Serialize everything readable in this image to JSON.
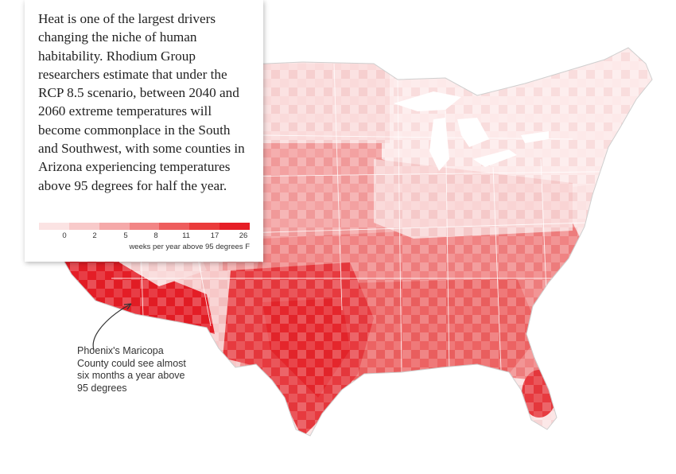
{
  "info": {
    "text": "Heat is one of the largest drivers changing the niche of human habitability. Rhodium Group researchers estimate that under the RCP 8.5 scenario, between 2040 and 2060 extreme temperatures will become commonplace in the South and Southwest, with some counties in Arizona experiencing temperatures above 95 degrees for half the year."
  },
  "legend": {
    "ticks": [
      "0",
      "2",
      "5",
      "8",
      "11",
      "17",
      "26"
    ],
    "caption": "weeks per year above 95 degrees F",
    "colors": [
      "#fbe3e3",
      "#f8caca",
      "#f5a9a9",
      "#f28585",
      "#ee5d5d",
      "#ea3b3b",
      "#e61e26"
    ]
  },
  "annotation": {
    "text": "Phoenix's Maricopa County could see almost six months a year above 95 degrees"
  },
  "map": {
    "heat_by_region": {
      "northeast": "0–2",
      "great_lakes": "0–2",
      "plains": "5–11",
      "southeast": "11–17",
      "texas": "17–26",
      "arizona": "26"
    }
  }
}
